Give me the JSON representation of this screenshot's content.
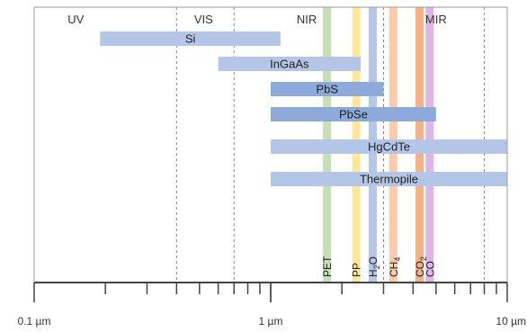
{
  "chart_data": {
    "type": "bar",
    "x_axis": {
      "scale": "log",
      "unit": "µm",
      "range": [
        0.1,
        10
      ],
      "tick_labels": [
        {
          "value": 0.1,
          "label": "0.1 µm"
        },
        {
          "value": 1,
          "label": "1 µm"
        },
        {
          "value": 10,
          "label": "10 µm"
        }
      ]
    },
    "regions": [
      {
        "name": "UV",
        "center": 0.15
      },
      {
        "name": "VIS",
        "center": 0.52
      },
      {
        "name": "NIR",
        "center": 1.42
      },
      {
        "name": "MIR",
        "center": 5.0
      }
    ],
    "region_boundaries": [
      0.4,
      0.7,
      3.0,
      8.0
    ],
    "detectors": [
      {
        "name": "Si",
        "start": 0.19,
        "end": 1.1,
        "color": "#b3c6e7"
      },
      {
        "name": "InGaAs",
        "start": 0.6,
        "end": 2.4,
        "color": "#b3c6e7"
      },
      {
        "name": "PbS",
        "start": 1.0,
        "end": 3.0,
        "color": "#8eaadb"
      },
      {
        "name": "PbSe",
        "start": 1.0,
        "end": 5.0,
        "color": "#8eaadb"
      },
      {
        "name": "HgCdTe",
        "start": 1.0,
        "end": 10.0,
        "color": "#b3c6e7"
      },
      {
        "name": "Thermopile",
        "start": 1.0,
        "end": 10.0,
        "color": "#b3c6e7"
      }
    ],
    "absorption_bands": [
      {
        "name": "PET",
        "name_sub": "",
        "wavelength": 1.73,
        "color": "#c5e0b4"
      },
      {
        "name": "PP",
        "name_sub": "",
        "wavelength": 2.3,
        "color": "#ffe699"
      },
      {
        "name": "H",
        "name_sub": "2",
        "name_rest": "O",
        "wavelength": 2.7,
        "color": "#b4c7e7"
      },
      {
        "name": "CH",
        "name_sub": "4",
        "wavelength": 3.3,
        "color": "#f8cbad"
      },
      {
        "name": "CO",
        "name_sub": "2",
        "wavelength": 4.26,
        "color": "#f4b183"
      },
      {
        "name": "CO",
        "name_sub": "",
        "wavelength": 4.7,
        "color": "#e0b4e6"
      }
    ],
    "grid": false
  }
}
